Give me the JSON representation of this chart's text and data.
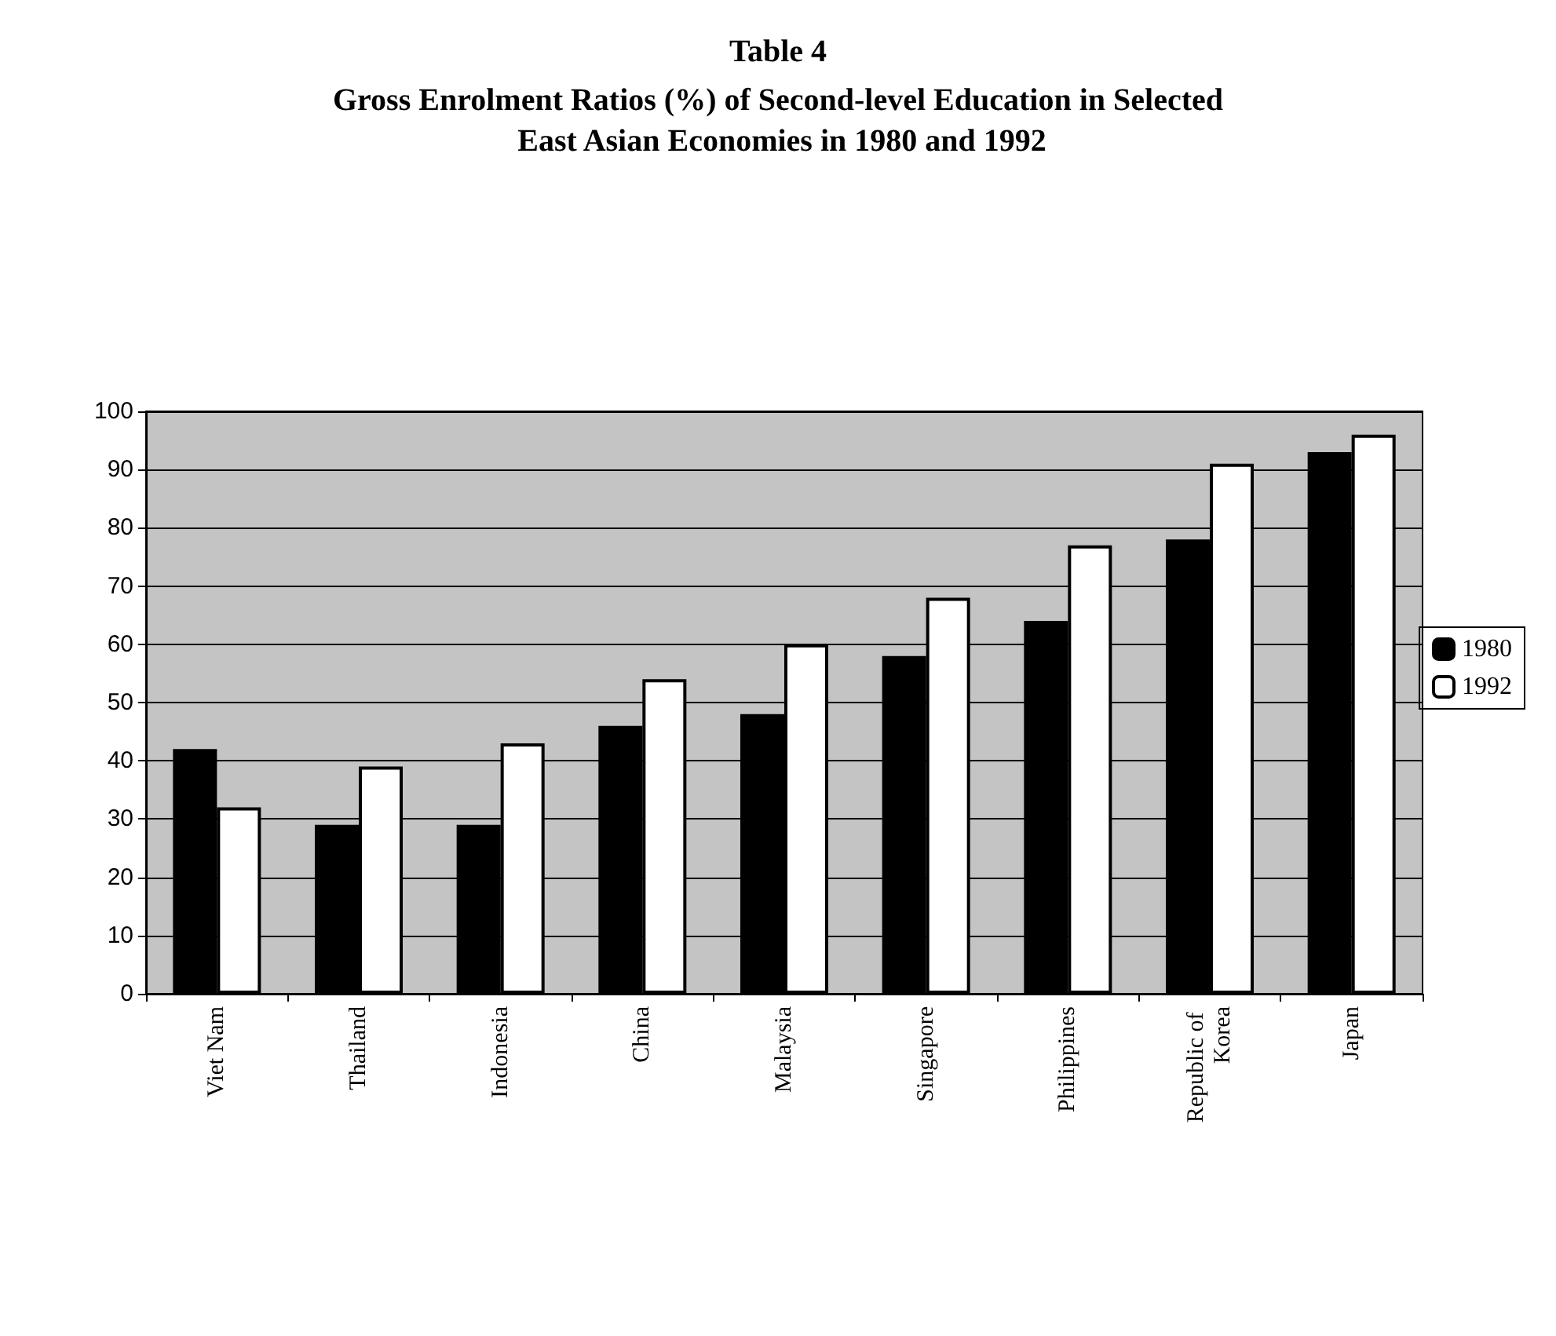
{
  "chart_data": {
    "type": "bar",
    "title": "Table 4",
    "subtitle": "Gross Enrolment Ratios (%) of Second-level Education in Selected East Asian Economies in 1980 and 1992",
    "categories": [
      "Viet Nam",
      "Thailand",
      "Indonesia",
      "China",
      "Malaysia",
      "Singapore",
      "Philippines",
      "Republic of Korea",
      "Japan"
    ],
    "series": [
      {
        "name": "1980",
        "color": "#000000",
        "values": [
          42,
          29,
          29,
          46,
          48,
          58,
          64,
          78,
          93
        ]
      },
      {
        "name": "1992",
        "color": "#ffffff",
        "values": [
          32,
          39,
          43,
          54,
          60,
          68,
          77,
          91,
          96
        ]
      }
    ],
    "ylim": [
      0,
      100
    ],
    "yticks": [
      0,
      10,
      20,
      30,
      40,
      50,
      60,
      70,
      80,
      90,
      100
    ],
    "grid": "y",
    "legend": "right"
  }
}
